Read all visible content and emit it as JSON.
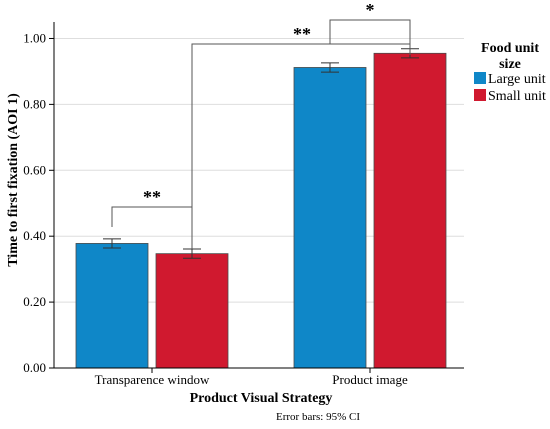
{
  "chart_data": {
    "type": "bar",
    "title": "",
    "xlabel": "Product Visual Strategy",
    "ylabel": "Time to first fixation (AOI 1)",
    "categories": [
      "Transparence window",
      "Product image"
    ],
    "series": [
      {
        "name": "Large unit",
        "color": "#0f87c8",
        "values": [
          0.378,
          0.912
        ],
        "ci_low": [
          0.364,
          0.898
        ],
        "ci_high": [
          0.392,
          0.926
        ]
      },
      {
        "name": "Small unit",
        "color": "#d0192f",
        "values": [
          0.347,
          0.955
        ],
        "ci_low": [
          0.333,
          0.941
        ],
        "ci_high": [
          0.361,
          0.969
        ]
      }
    ],
    "ylim": [
      0,
      1.05
    ],
    "yticks": [
      0.0,
      0.2,
      0.4,
      0.6,
      0.8,
      1.0
    ],
    "ytick_labels": [
      "0.00",
      "0.20",
      "0.40",
      "0.60",
      "0.80",
      "1.00"
    ],
    "grid": true,
    "legend": {
      "title_line1": "Food unit",
      "title_line2": "size",
      "placement": "top-right"
    },
    "significance": [
      {
        "label": "**",
        "between": "Large unit vs Small unit, Transparence window"
      },
      {
        "label": "**",
        "between": "Small unit Transparence window vs Small unit Product image"
      },
      {
        "label": "*",
        "between": "Large unit vs Small unit, Product image"
      }
    ],
    "note": "Error bars: 95% CI"
  }
}
